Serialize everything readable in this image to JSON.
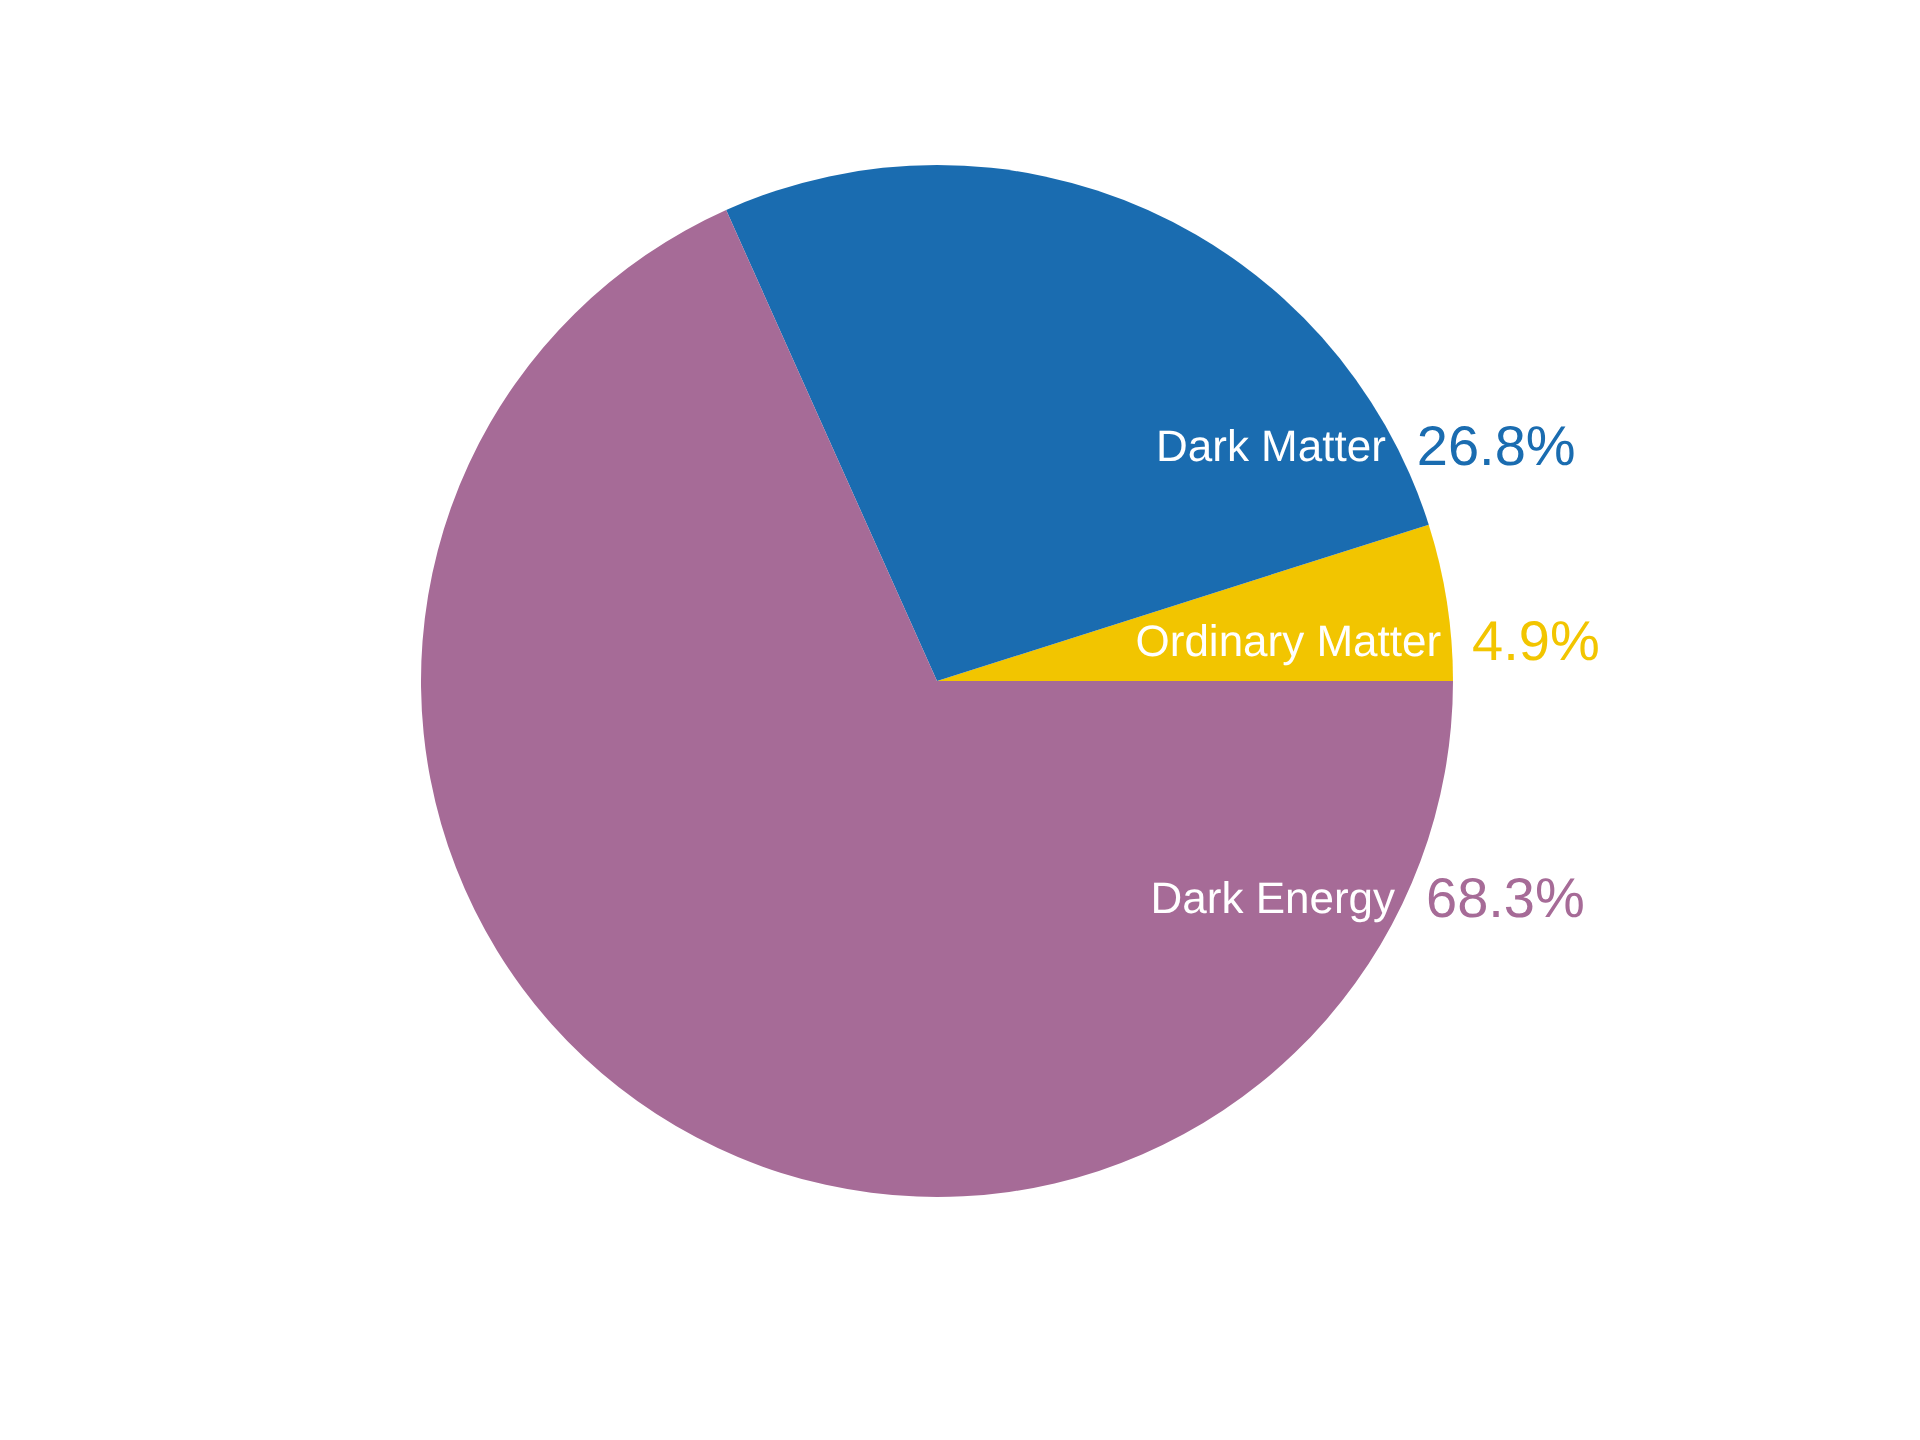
{
  "chart_data": {
    "type": "pie",
    "categories": [
      "Ordinary Matter",
      "Dark Matter",
      "Dark Energy"
    ],
    "values": [
      4.9,
      26.8,
      68.3
    ],
    "colors": [
      "#f2c500",
      "#1a6cb0",
      "#a66b97"
    ],
    "value_labels": [
      "4.9%",
      "26.8%",
      "68.3%"
    ]
  }
}
